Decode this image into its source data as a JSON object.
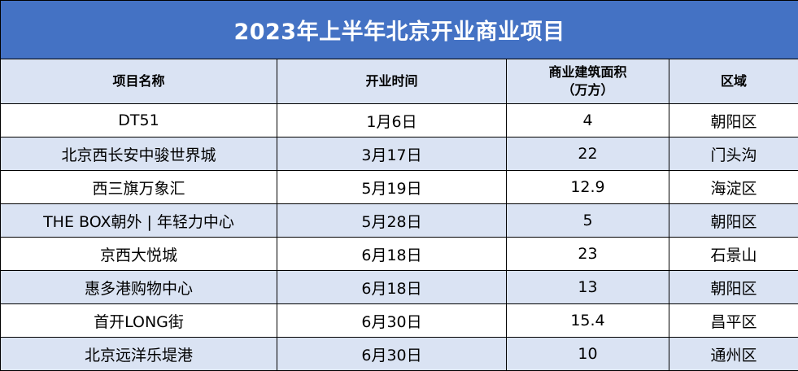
{
  "chart_data": {
    "type": "table",
    "title": "2023年上半年北京开业商业项目",
    "columns": [
      "项目名称",
      "开业时间",
      "商业建筑面积（万方）",
      "区域"
    ],
    "column_labels": [
      [
        "项目名称"
      ],
      [
        "开业时间"
      ],
      [
        "商业建筑面积",
        "（万方）"
      ],
      [
        "区域"
      ]
    ],
    "rows": [
      [
        "DT51",
        "1月6日",
        "4",
        "朝阳区"
      ],
      [
        "北京西长安中骏世界城",
        "3月17日",
        "22",
        "门头沟"
      ],
      [
        "西三旗万象汇",
        "5月19日",
        "12.9",
        "海淀区"
      ],
      [
        "THE BOX朝外 | 年轻力中心",
        "5月28日",
        "5",
        "朝阳区"
      ],
      [
        "京西大悦城",
        "6月18日",
        "23",
        "石景山"
      ],
      [
        "惠多港购物中心",
        "6月18日",
        "13",
        "朝阳区"
      ],
      [
        "首开LONG街",
        "6月30日",
        "15.4",
        "昌平区"
      ],
      [
        "北京远洋乐堤港",
        "6月30日",
        "10",
        "通州区"
      ]
    ],
    "colors": {
      "title_bg": "#4472c4",
      "header_bg": "#dae3f3",
      "stripe_bg": "#dae3f3",
      "row_bg": "#ffffff",
      "border": "#000000"
    }
  }
}
